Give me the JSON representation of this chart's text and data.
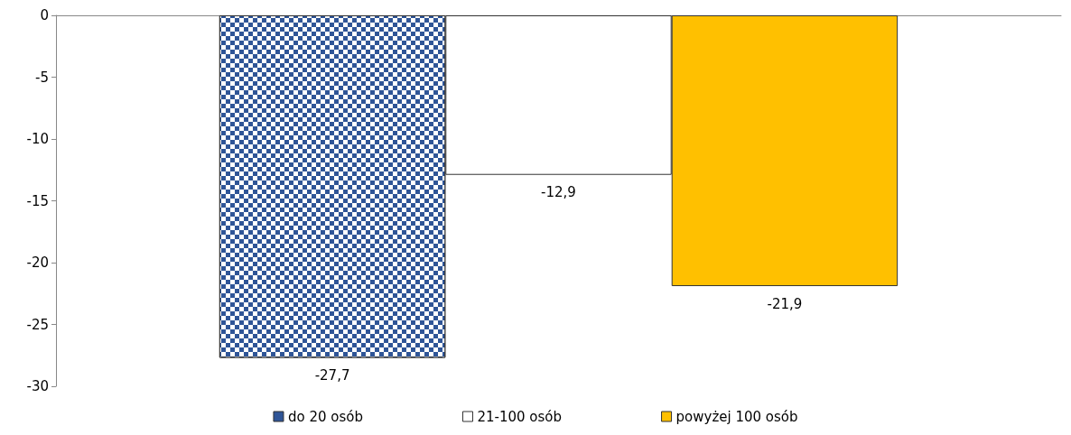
{
  "chart_data": {
    "type": "bar",
    "categories": [
      null
    ],
    "series": [
      {
        "name": "do 20 osób",
        "color": "#2f5597",
        "values": [
          -27.7
        ],
        "value_labels": [
          "-27,7"
        ]
      },
      {
        "name": "21-100 osób",
        "color": "#ffffff",
        "values": [
          -12.9
        ],
        "value_labels": [
          "-12,9"
        ]
      },
      {
        "name": "powyżej 100 osób",
        "color": "#ffc000",
        "values": [
          -21.9
        ],
        "value_labels": [
          "-21,9"
        ]
      }
    ],
    "ylim": [
      -30,
      0
    ],
    "yticks": [
      -30,
      -25,
      -20,
      -15,
      -10,
      -5,
      0
    ],
    "grid": false,
    "legend": "bottom"
  }
}
